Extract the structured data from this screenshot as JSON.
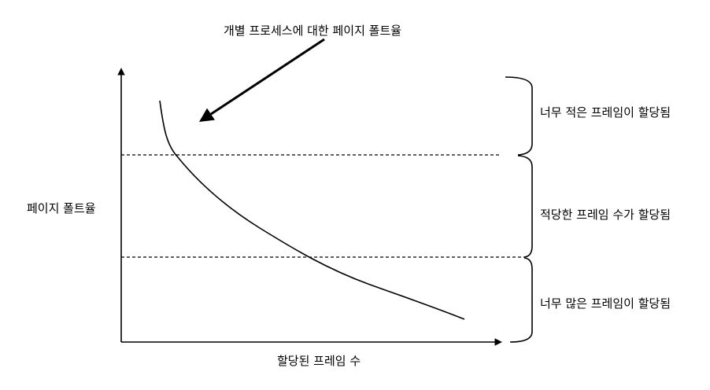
{
  "annotation": {
    "text": "개별 프로세스에 대한 페이지 폴트율"
  },
  "axes": {
    "y_label": "페이지 폴트율",
    "x_label": "할당된 프레임 수"
  },
  "regions": [
    {
      "label": "너무 적은 프레임이 할당됨"
    },
    {
      "label": "적당한 프레임 수가 할당됨"
    },
    {
      "label": "너무 많은 프레임이 할당됨"
    }
  ],
  "colors": {
    "line": "#000000",
    "background": "#ffffff"
  }
}
